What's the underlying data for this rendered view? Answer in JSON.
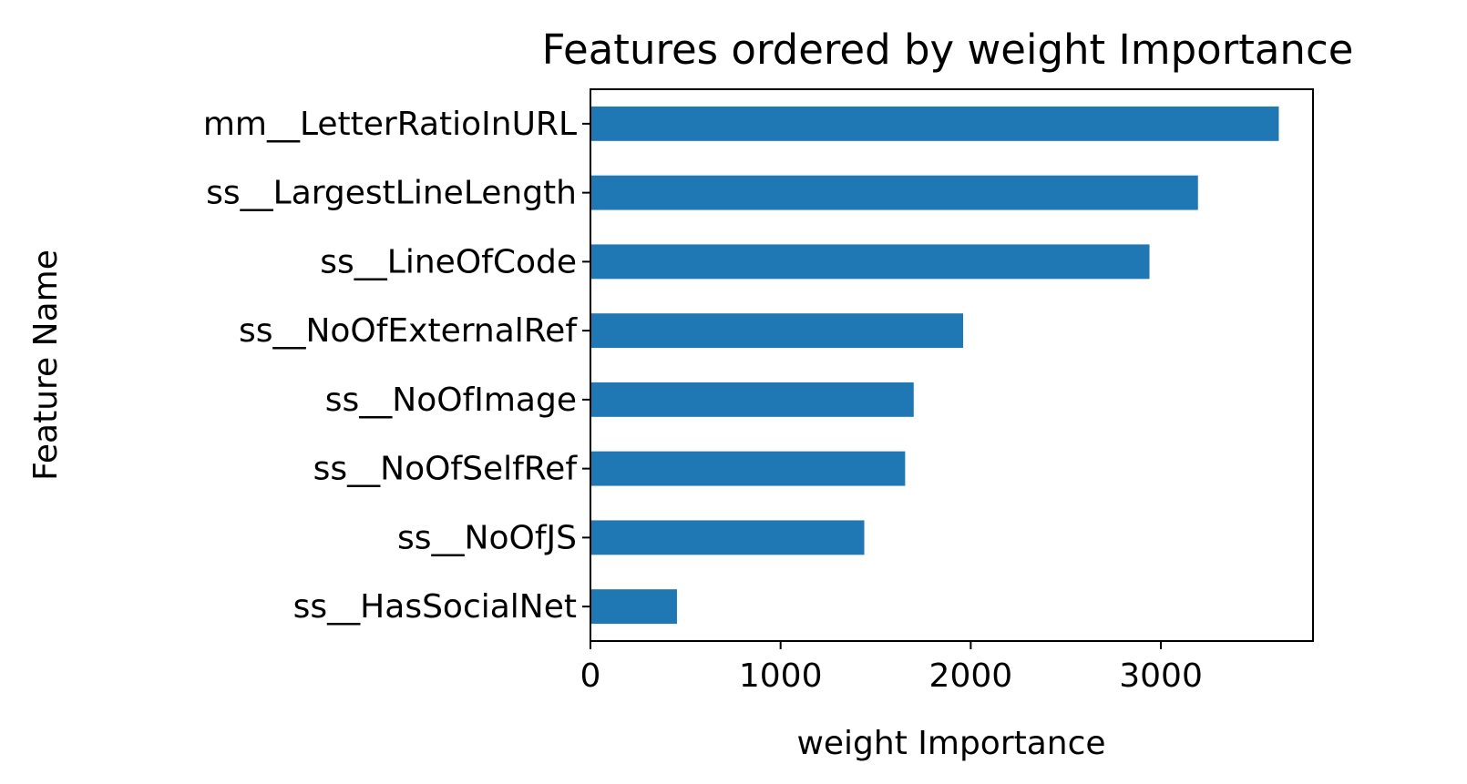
{
  "chart_data": {
    "type": "bar",
    "orientation": "horizontal",
    "title": "Features ordered by weight Importance",
    "xlabel": "weight Importance",
    "ylabel": "Feature Name",
    "categories": [
      "mm__LetterRatioInURL",
      "ss__LargestLineLength",
      "ss__LineOfCode",
      "ss__NoOfExternalRef",
      "ss__NoOfImage",
      "ss__NoOfSelfRef",
      "ss__NoOfJS",
      "ss__HasSocialNet"
    ],
    "values": [
      3620,
      3195,
      2940,
      1960,
      1700,
      1655,
      1440,
      455
    ],
    "xlim": [
      0,
      3800
    ],
    "xticks": [
      0,
      1000,
      2000,
      3000
    ],
    "grid": false,
    "legend": "none",
    "bar_color": "#1f77b4"
  }
}
